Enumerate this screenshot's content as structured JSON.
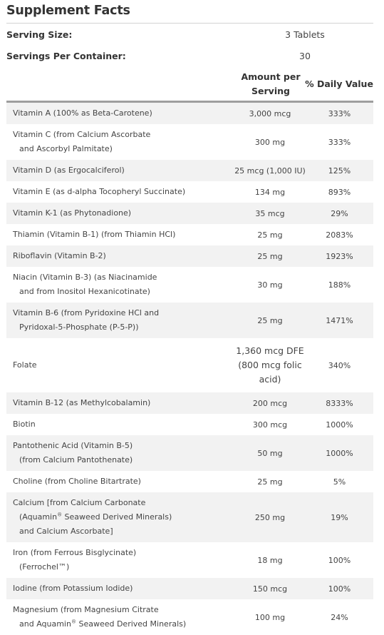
{
  "title": "Supplement Facts",
  "serving_size": {
    "label": "Serving Size:",
    "value": "3 Tablets"
  },
  "servings_per_container": {
    "label": "Servings Per Container:",
    "value": "30"
  },
  "headers": {
    "amount_line1": "Amount per",
    "amount_line2": "Serving",
    "dv": "% Daily Value"
  },
  "nutrients": [
    {
      "name": [
        "Vitamin A (100% as Beta-Carotene)"
      ],
      "amount": "3,000 mcg",
      "dv": "333%"
    },
    {
      "name": [
        "Vitamin C (from Calcium Ascorbate",
        "and Ascorbyl Palmitate)"
      ],
      "amount": "300 mg",
      "dv": "333%"
    },
    {
      "name": [
        "Vitamin D (as Ergocalciferol)"
      ],
      "amount": "25 mcg (1,000 IU)",
      "dv": "125%"
    },
    {
      "name": [
        "Vitamin E (as d-alpha Tocopheryl Succinate)"
      ],
      "amount": "134 mg",
      "dv": "893%"
    },
    {
      "name": [
        "Vitamin K-1 (as Phytonadione)"
      ],
      "amount": "35 mcg",
      "dv": "29%"
    },
    {
      "name": [
        "Thiamin (Vitamin B-1) (from Thiamin HCl)"
      ],
      "amount": "25 mg",
      "dv": "2083%"
    },
    {
      "name": [
        "Riboflavin (Vitamin B-2)"
      ],
      "amount": "25 mg",
      "dv": "1923%"
    },
    {
      "name": [
        "Niacin (Vitamin B-3) (as Niacinamide",
        "and from Inositol Hexanicotinate)"
      ],
      "amount": "30 mg",
      "dv": "188%"
    },
    {
      "name": [
        "Vitamin B-6 (from Pyridoxine HCl and",
        "Pyridoxal-5-Phosphate (P-5-P))"
      ],
      "amount": "25 mg",
      "dv": "1471%"
    },
    {
      "name": [
        "Folate"
      ],
      "amount": [
        "1,360 mcg DFE",
        "(800 mcg folic",
        "acid)"
      ],
      "dv": "340%"
    },
    {
      "name": [
        "Vitamin B-12 (as Methylcobalamin)"
      ],
      "amount": "200 mcg",
      "dv": "8333%"
    },
    {
      "name": [
        "Biotin"
      ],
      "amount": "300 mcg",
      "dv": "1000%"
    },
    {
      "name": [
        "Pantothenic Acid (Vitamin B-5)",
        "(from Calcium Pantothenate)"
      ],
      "amount": "50 mg",
      "dv": "1000%"
    },
    {
      "name": [
        "Choline (from Choline Bitartrate)"
      ],
      "amount": "25 mg",
      "dv": "5%"
    },
    {
      "name": [
        "Calcium [from Calcium Carbonate",
        "(Aquamin® Seaweed Derived Minerals)",
        "and Calcium Ascorbate]"
      ],
      "amount": "250 mg",
      "dv": "19%"
    },
    {
      "name": [
        "Iron (from Ferrous Bisglycinate)",
        "(Ferrochel™)"
      ],
      "amount": "18 mg",
      "dv": "100%"
    },
    {
      "name": [
        "Iodine (from Potassium Iodide)"
      ],
      "amount": "150 mcg",
      "dv": "100%"
    },
    {
      "name": [
        "Magnesium (from Magnesium Citrate",
        "and Aquamin® Seaweed Derived Minerals)"
      ],
      "amount": "100 mg",
      "dv": "24%"
    }
  ]
}
